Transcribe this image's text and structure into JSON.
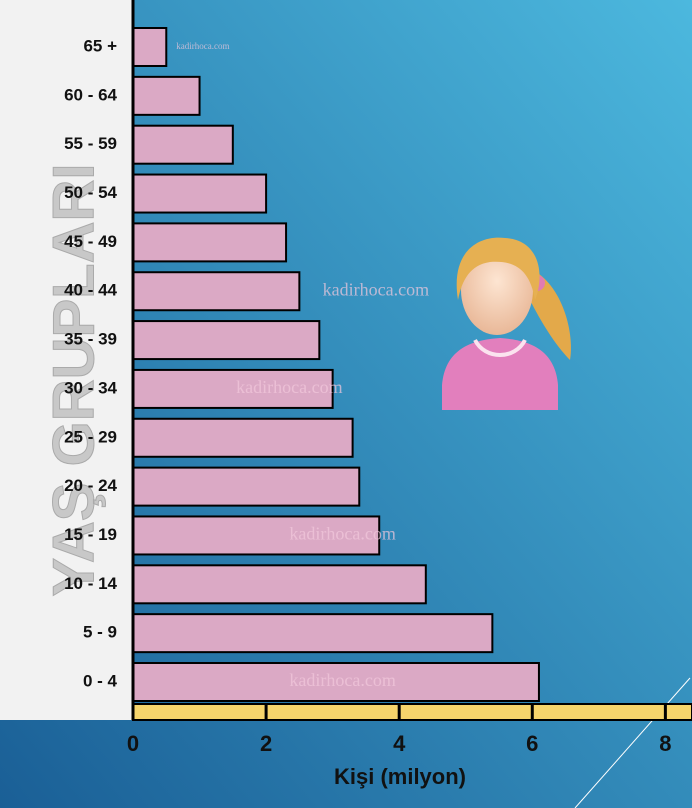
{
  "chart_data": {
    "type": "bar",
    "orientation": "horizontal",
    "ylabel": "YAŞ GRUPLARI",
    "xlabel": "Kişi (milyon)",
    "watermark": "kadirhoca.com",
    "categories": [
      "65 +",
      "60 - 64",
      "55 - 59",
      "50 - 54",
      "45 - 49",
      "40 - 44",
      "35 - 39",
      "30 - 34",
      "25 - 29",
      "20 - 24",
      "15 - 19",
      "10 - 14",
      "5 - 9",
      "0 - 4"
    ],
    "values": [
      0.5,
      1.0,
      1.5,
      2.0,
      2.3,
      2.5,
      2.8,
      3.0,
      3.3,
      3.4,
      3.7,
      4.4,
      5.4,
      6.1
    ],
    "color": "#dba9c5",
    "xlim": [
      0,
      8.4
    ],
    "xticks": [
      0,
      2,
      4,
      6,
      8
    ]
  }
}
